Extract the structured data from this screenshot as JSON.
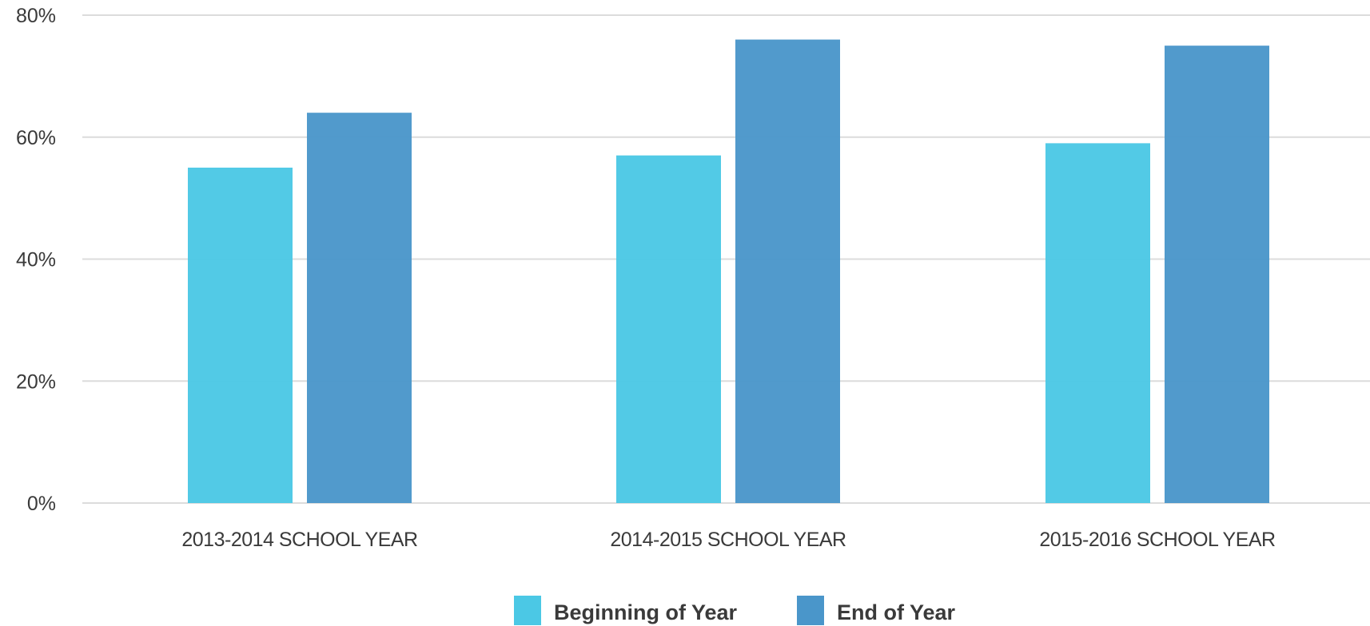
{
  "chart_data": {
    "type": "bar",
    "title": "",
    "xlabel": "",
    "ylabel": "",
    "categories": [
      "2013-2014 SCHOOL YEAR",
      "2014-2015 SCHOOL YEAR",
      "2015-2016 SCHOOL YEAR"
    ],
    "series": [
      {
        "name": "Beginning of Year",
        "values": [
          55,
          57,
          59
        ],
        "color": "#4bc8e5"
      },
      {
        "name": "End of Year",
        "values": [
          64,
          76,
          75
        ],
        "color": "#4a96ca"
      }
    ],
    "ylim": [
      0,
      80
    ],
    "yticks": [
      0,
      20,
      40,
      60,
      80
    ],
    "ytick_labels": [
      "0%",
      "20%",
      "40%",
      "60%",
      "80%"
    ],
    "grid": true,
    "legend_position": "bottom-center"
  }
}
